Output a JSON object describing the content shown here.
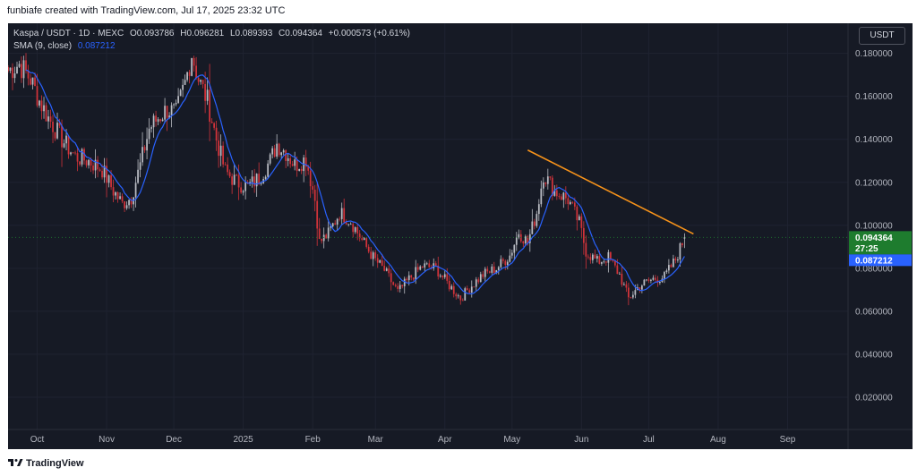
{
  "header": {
    "credit": "funbiafe created with TradingView.com, Jul 17, 2025 23:32 UTC"
  },
  "legend": {
    "symbol": "Kaspa / USDT · 1D · MEXC",
    "o_label": "O",
    "o": "0.093786",
    "h_label": "H",
    "h": "0.096281",
    "l_label": "L",
    "l": "0.089393",
    "c_label": "C",
    "c": "0.094364",
    "change": "+0.000573 (+0.61%)",
    "sma_label": "SMA (9, close)",
    "sma_value": "0.087212"
  },
  "currency": "USDT",
  "price_tag": {
    "value": "0.094364",
    "countdown": "27:25",
    "color": "#1e7c2e"
  },
  "sma_tag": {
    "value": "0.087212",
    "color": "#2962ff"
  },
  "footer": {
    "brand": "TradingView"
  },
  "colors": {
    "up": "#b9bcc3",
    "down": "#d1333a",
    "sma": "#2962ff",
    "trendline": "#f7931a",
    "bg": "#161a25"
  },
  "chart_data": {
    "type": "candlestick",
    "y_ticks": [
      "0.180000",
      "0.160000",
      "0.140000",
      "0.120000",
      "0.100000",
      "0.080000",
      "0.060000",
      "0.040000",
      "0.020000"
    ],
    "y_tick_values": [
      0.18,
      0.16,
      0.14,
      0.12,
      0.1,
      0.08,
      0.06,
      0.04,
      0.02
    ],
    "ylim": [
      0.005,
      0.194
    ],
    "x_labels": [
      {
        "label": "Oct",
        "date": "2024-10-01"
      },
      {
        "label": "Nov",
        "date": "2024-11-01"
      },
      {
        "label": "Dec",
        "date": "2024-12-01"
      },
      {
        "label": "2025",
        "date": "2025-01-01"
      },
      {
        "label": "Feb",
        "date": "2025-02-01"
      },
      {
        "label": "Mar",
        "date": "2025-03-01"
      },
      {
        "label": "Apr",
        "date": "2025-04-01"
      },
      {
        "label": "May",
        "date": "2025-05-01"
      },
      {
        "label": "Jun",
        "date": "2025-06-01"
      },
      {
        "label": "Jul",
        "date": "2025-07-01"
      },
      {
        "label": "Aug",
        "date": "2025-08-01"
      },
      {
        "label": "Sep",
        "date": "2025-09-01"
      }
    ],
    "xlim": [
      "2024-09-18",
      "2025-09-28"
    ],
    "close_anchors": [
      [
        "2024-09-18",
        0.172
      ],
      [
        "2024-09-23",
        0.175
      ],
      [
        "2024-09-28",
        0.168
      ],
      [
        "2024-10-02",
        0.158
      ],
      [
        "2024-10-06",
        0.15
      ],
      [
        "2024-10-12",
        0.14
      ],
      [
        "2024-10-18",
        0.132
      ],
      [
        "2024-10-24",
        0.13
      ],
      [
        "2024-10-30",
        0.126
      ],
      [
        "2024-11-04",
        0.116
      ],
      [
        "2024-11-08",
        0.11
      ],
      [
        "2024-11-12",
        0.113
      ],
      [
        "2024-11-16",
        0.128
      ],
      [
        "2024-11-20",
        0.145
      ],
      [
        "2024-11-24",
        0.15
      ],
      [
        "2024-11-28",
        0.154
      ],
      [
        "2024-12-02",
        0.152
      ],
      [
        "2024-12-06",
        0.166
      ],
      [
        "2024-12-09",
        0.18
      ],
      [
        "2024-12-12",
        0.168
      ],
      [
        "2024-12-16",
        0.158
      ],
      [
        "2024-12-20",
        0.14
      ],
      [
        "2024-12-24",
        0.125
      ],
      [
        "2024-12-29",
        0.12
      ],
      [
        "2025-01-03",
        0.118
      ],
      [
        "2025-01-08",
        0.122
      ],
      [
        "2025-01-13",
        0.13
      ],
      [
        "2025-01-16",
        0.138
      ],
      [
        "2025-01-20",
        0.134
      ],
      [
        "2025-01-24",
        0.128
      ],
      [
        "2025-01-29",
        0.131
      ],
      [
        "2025-02-02",
        0.112
      ],
      [
        "2025-02-04",
        0.092
      ],
      [
        "2025-02-08",
        0.096
      ],
      [
        "2025-02-13",
        0.106
      ],
      [
        "2025-02-18",
        0.102
      ],
      [
        "2025-02-23",
        0.093
      ],
      [
        "2025-02-28",
        0.085
      ],
      [
        "2025-03-05",
        0.079
      ],
      [
        "2025-03-11",
        0.069
      ],
      [
        "2025-03-16",
        0.075
      ],
      [
        "2025-03-22",
        0.081
      ],
      [
        "2025-03-28",
        0.08
      ],
      [
        "2025-04-03",
        0.072
      ],
      [
        "2025-04-08",
        0.066
      ],
      [
        "2025-04-12",
        0.071
      ],
      [
        "2025-04-18",
        0.077
      ],
      [
        "2025-04-24",
        0.08
      ],
      [
        "2025-04-30",
        0.086
      ],
      [
        "2025-05-04",
        0.097
      ],
      [
        "2025-05-08",
        0.092
      ],
      [
        "2025-05-12",
        0.106
      ],
      [
        "2025-05-15",
        0.124
      ],
      [
        "2025-05-20",
        0.116
      ],
      [
        "2025-05-26",
        0.112
      ],
      [
        "2025-05-31",
        0.101
      ],
      [
        "2025-06-03",
        0.088
      ],
      [
        "2025-06-08",
        0.083
      ],
      [
        "2025-06-13",
        0.085
      ],
      [
        "2025-06-18",
        0.077
      ],
      [
        "2025-06-22",
        0.066
      ],
      [
        "2025-06-27",
        0.072
      ],
      [
        "2025-07-03",
        0.075
      ],
      [
        "2025-07-08",
        0.076
      ],
      [
        "2025-07-13",
        0.084
      ],
      [
        "2025-07-17",
        0.094364
      ]
    ],
    "last_candle": {
      "date": "2025-07-17",
      "open": 0.093786,
      "high": 0.096281,
      "low": 0.089393,
      "close": 0.094364
    },
    "sma_period": 9,
    "trendline": {
      "x": [
        "2025-05-08",
        "2025-07-21"
      ],
      "y": [
        0.135,
        0.096
      ]
    }
  }
}
